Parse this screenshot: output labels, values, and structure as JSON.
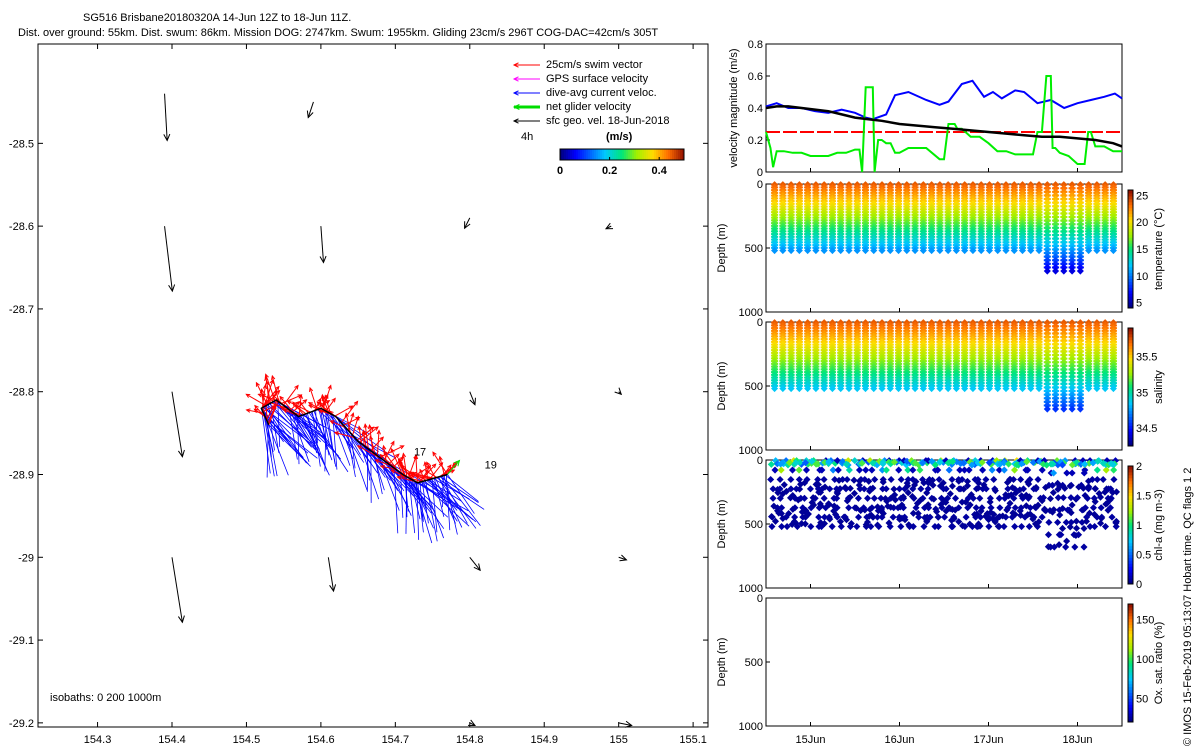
{
  "title": {
    "line1": "SG516 Brisbane20180320A 14-Jun 12Z to 18-Jun 11Z.",
    "line2": "Dist. over ground: 55km. Dist. swum: 86km. Mission DOG: 2747km. Swum: 1955km. Gliding 23cm/s 296T COG-DAC=42cm/s 305T"
  },
  "side_caption": "© IMOS 15-Feb-2019 05:13:07 Hobart time. QC flags 1 2",
  "colors": {
    "swim": "#ff0000",
    "gps": "#ff00ff",
    "dac": "#0000ff",
    "net": "#00dd00",
    "sfc": "#000000",
    "threshold": "#ff0000",
    "speed": "#00ee00",
    "dacmag": "#0000ff",
    "geo": "#000000"
  },
  "chart_data": [
    {
      "id": "map",
      "type": "scatter",
      "title": "Glider track and velocity vectors",
      "xlim": [
        154.22,
        155.12
      ],
      "ylim": [
        -29.205,
        -28.38
      ],
      "xticks": [
        "154.3",
        "154.4",
        "154.5",
        "154.6",
        "154.7",
        "154.8",
        "154.9",
        "155",
        "155.1"
      ],
      "xtick_values": [
        154.3,
        154.4,
        154.5,
        154.6,
        154.7,
        154.8,
        154.9,
        155.0,
        155.1
      ],
      "yticks": [
        "-28.5",
        "-28.6",
        "-28.7",
        "-28.8",
        "-28.9",
        "-29",
        "-29.1",
        "-29.2"
      ],
      "ytick_values": [
        -28.5,
        -28.6,
        -28.7,
        -28.8,
        -28.9,
        -29.0,
        -29.1,
        -29.2
      ],
      "legend": [
        {
          "label": "25cm/s swim vector",
          "color": "#ff0000"
        },
        {
          "label": "GPS surface velocity",
          "color": "#ff00ff"
        },
        {
          "label": "dive-avg current veloc.",
          "color": "#0000ff"
        },
        {
          "label": "net glider velocity",
          "color": "#00dd00"
        },
        {
          "label": "sfc geo. vel. 18-Jun-2018",
          "color": "#000000"
        }
      ],
      "legend_extra": "4h",
      "colorbar": {
        "label": "(m/s)",
        "ticks": [
          "0",
          "0.2",
          "0.4"
        ],
        "tick_values": [
          0,
          0.2,
          0.4
        ],
        "range": [
          0,
          0.5
        ]
      },
      "isobaths": "isobaths: 0   200  1000m",
      "annotations": [
        {
          "text": "17",
          "lon": 154.725,
          "lat": -28.877
        },
        {
          "text": "19",
          "lon": 154.82,
          "lat": -28.893
        }
      ],
      "track": [
        [
          154.53,
          -28.84
        ],
        [
          154.52,
          -28.82
        ],
        [
          154.54,
          -28.81
        ],
        [
          154.57,
          -28.83
        ],
        [
          154.6,
          -28.82
        ],
        [
          154.62,
          -28.83
        ],
        [
          154.65,
          -28.86
        ],
        [
          154.68,
          -28.88
        ],
        [
          154.71,
          -28.9
        ],
        [
          154.73,
          -28.91
        ],
        [
          154.75,
          -28.905
        ],
        [
          154.77,
          -28.9
        ]
      ],
      "geo_vectors": [
        {
          "lon": 154.39,
          "lat": -28.44,
          "u": 0.01,
          "v": -0.18
        },
        {
          "lon": 154.59,
          "lat": -28.45,
          "u": -0.02,
          "v": -0.06
        },
        {
          "lon": 154.39,
          "lat": -28.6,
          "u": 0.03,
          "v": -0.25
        },
        {
          "lon": 154.6,
          "lat": -28.6,
          "u": 0.01,
          "v": -0.14
        },
        {
          "lon": 154.8,
          "lat": -28.59,
          "u": -0.02,
          "v": -0.04
        },
        {
          "lon": 154.99,
          "lat": -28.6,
          "u": -0.02,
          "v": -0.01
        },
        {
          "lon": 154.4,
          "lat": -28.8,
          "u": 0.04,
          "v": -0.25
        },
        {
          "lon": 154.8,
          "lat": -28.8,
          "u": 0.02,
          "v": -0.05
        },
        {
          "lon": 155.0,
          "lat": -28.8,
          "u": 0.01,
          "v": -0.01
        },
        {
          "lon": 154.4,
          "lat": -29.0,
          "u": 0.04,
          "v": -0.25
        },
        {
          "lon": 154.61,
          "lat": -29.0,
          "u": 0.02,
          "v": -0.13
        },
        {
          "lon": 154.8,
          "lat": -29.0,
          "u": 0.04,
          "v": -0.05
        },
        {
          "lon": 155.0,
          "lat": -29.0,
          "u": 0.03,
          "v": -0.01
        },
        {
          "lon": 154.8,
          "lat": -29.2,
          "u": 0.02,
          "v": -0.01
        },
        {
          "lon": 155.0,
          "lat": -29.2,
          "u": 0.05,
          "v": -0.01
        }
      ]
    },
    {
      "id": "velocity",
      "type": "line",
      "ylabel": "velocity magnitude (m/s)",
      "ylim": [
        0,
        0.8
      ],
      "yticks": [
        "0",
        "0.2",
        "0.4",
        "0.6",
        "0.8"
      ],
      "ytick_values": [
        0,
        0.2,
        0.4,
        0.6,
        0.8
      ],
      "xlim": [
        14.5,
        18.5
      ],
      "threshold": 0.25,
      "series": [
        {
          "name": "dive-avg current speed",
          "color": "#0000ff",
          "x": [
            14.5,
            14.62,
            14.75,
            14.9,
            15.05,
            15.2,
            15.35,
            15.5,
            15.62,
            15.7,
            15.85,
            15.95,
            16.1,
            16.3,
            16.45,
            16.55,
            16.7,
            16.82,
            16.95,
            17.05,
            17.15,
            17.3,
            17.4,
            17.55,
            17.7,
            17.85,
            18.0,
            18.15,
            18.3,
            18.42,
            18.5
          ],
          "values": [
            0.41,
            0.43,
            0.4,
            0.4,
            0.38,
            0.37,
            0.39,
            0.37,
            0.34,
            0.33,
            0.36,
            0.48,
            0.5,
            0.45,
            0.42,
            0.44,
            0.55,
            0.57,
            0.47,
            0.5,
            0.46,
            0.51,
            0.5,
            0.43,
            0.45,
            0.4,
            0.43,
            0.45,
            0.47,
            0.49,
            0.46
          ]
        },
        {
          "name": "net glider speed",
          "color": "#00ee00",
          "x": [
            14.5,
            14.55,
            14.58,
            14.62,
            14.7,
            14.8,
            14.9,
            15.0,
            15.1,
            15.2,
            15.3,
            15.4,
            15.5,
            15.55,
            15.58,
            15.62,
            15.7,
            15.72,
            15.76,
            15.8,
            15.85,
            15.9,
            15.95,
            16.0,
            16.1,
            16.2,
            16.3,
            16.45,
            16.5,
            16.55,
            16.62,
            16.65,
            16.7,
            16.8,
            16.9,
            17.0,
            17.1,
            17.2,
            17.3,
            17.4,
            17.5,
            17.55,
            17.6,
            17.65,
            17.7,
            17.72,
            17.75,
            17.8,
            17.9,
            18.0,
            18.08,
            18.12,
            18.15,
            18.2,
            18.3,
            18.4,
            18.5
          ],
          "values": [
            0.25,
            0.15,
            0.03,
            0.13,
            0.13,
            0.12,
            0.12,
            0.1,
            0.1,
            0.1,
            0.12,
            0.12,
            0.14,
            0.14,
            0.0,
            0.53,
            0.53,
            0.0,
            0.2,
            0.2,
            0.18,
            0.18,
            0.12,
            0.12,
            0.15,
            0.15,
            0.15,
            0.08,
            0.08,
            0.3,
            0.3,
            0.27,
            0.27,
            0.22,
            0.22,
            0.18,
            0.13,
            0.13,
            0.11,
            0.11,
            0.11,
            0.25,
            0.25,
            0.6,
            0.6,
            0.15,
            0.15,
            0.12,
            0.1,
            0.05,
            0.05,
            0.25,
            0.25,
            0.16,
            0.16,
            0.13,
            0.13
          ]
        },
        {
          "name": "sfc geostrophic speed",
          "color": "#000000",
          "x": [
            14.5,
            14.62,
            14.75,
            14.9,
            15.05,
            15.2,
            15.35,
            15.5,
            15.65,
            15.8,
            16.0,
            16.2,
            16.4,
            16.6,
            16.8,
            17.0,
            17.2,
            17.4,
            17.6,
            17.8,
            18.0,
            18.2,
            18.4,
            18.5
          ],
          "values": [
            0.4,
            0.41,
            0.41,
            0.4,
            0.39,
            0.38,
            0.36,
            0.34,
            0.33,
            0.32,
            0.3,
            0.29,
            0.28,
            0.27,
            0.26,
            0.25,
            0.24,
            0.23,
            0.22,
            0.22,
            0.21,
            0.2,
            0.18,
            0.16
          ]
        }
      ]
    },
    {
      "id": "temperature",
      "type": "scatter",
      "ylabel": "Depth (m)",
      "colorbar_label": "temperature (°C)",
      "cticks": [
        "5",
        "10",
        "15",
        "20",
        "25"
      ],
      "ctick_values": [
        5,
        10,
        15,
        20,
        25
      ],
      "crange": [
        4,
        26
      ],
      "ylim": [
        0,
        1000
      ],
      "yticks": [
        "0",
        "500",
        "1000"
      ],
      "ytick_values": [
        0,
        500,
        1000
      ],
      "profile_max_depth": 520,
      "deep_dives_max_depth": 680,
      "surface_value": 24,
      "deep_value": 6
    },
    {
      "id": "salinity",
      "type": "scatter",
      "ylabel": "Depth (m)",
      "colorbar_label": "salinity",
      "cticks": [
        "34.5",
        "35",
        "35.5"
      ],
      "ctick_values": [
        34.5,
        35,
        35.5
      ],
      "crange": [
        34.25,
        35.9
      ],
      "ylim": [
        0,
        1000
      ],
      "yticks": [
        "0",
        "500",
        "1000"
      ],
      "ytick_values": [
        0,
        500,
        1000
      ],
      "profile_max_depth": 520,
      "deep_dives_max_depth": 680,
      "surface_value": 35.75,
      "deep_value": 34.55
    },
    {
      "id": "chla",
      "type": "scatter",
      "ylabel": "Depth (m)",
      "colorbar_label": "chl-a (mg m-3)",
      "cticks": [
        "0",
        "0.5",
        "1",
        "1.5",
        "2"
      ],
      "ctick_values": [
        0,
        0.5,
        1,
        1.5,
        2
      ],
      "crange": [
        0,
        2
      ],
      "ylim": [
        0,
        1000
      ],
      "yticks": [
        "0",
        "500",
        "1000"
      ],
      "ytick_values": [
        0,
        500,
        1000
      ],
      "profile_max_depth": 520,
      "deep_dives_max_depth": 680
    },
    {
      "id": "oxygen",
      "type": "scatter",
      "ylabel": "Depth (m)",
      "colorbar_label": "Ox. sat. ratio (%)",
      "cticks": [
        "50",
        "100",
        "150"
      ],
      "ctick_values": [
        50,
        100,
        150
      ],
      "crange": [
        20,
        170
      ],
      "ylim": [
        0,
        1000
      ],
      "yticks": [
        "0",
        "500",
        "1000"
      ],
      "ytick_values": [
        0,
        500,
        1000
      ],
      "xticks": [
        "15Jun",
        "16Jun",
        "17Jun",
        "18Jun"
      ],
      "xtick_values": [
        15,
        16,
        17,
        18
      ],
      "xlim": [
        14.5,
        18.5
      ]
    }
  ]
}
